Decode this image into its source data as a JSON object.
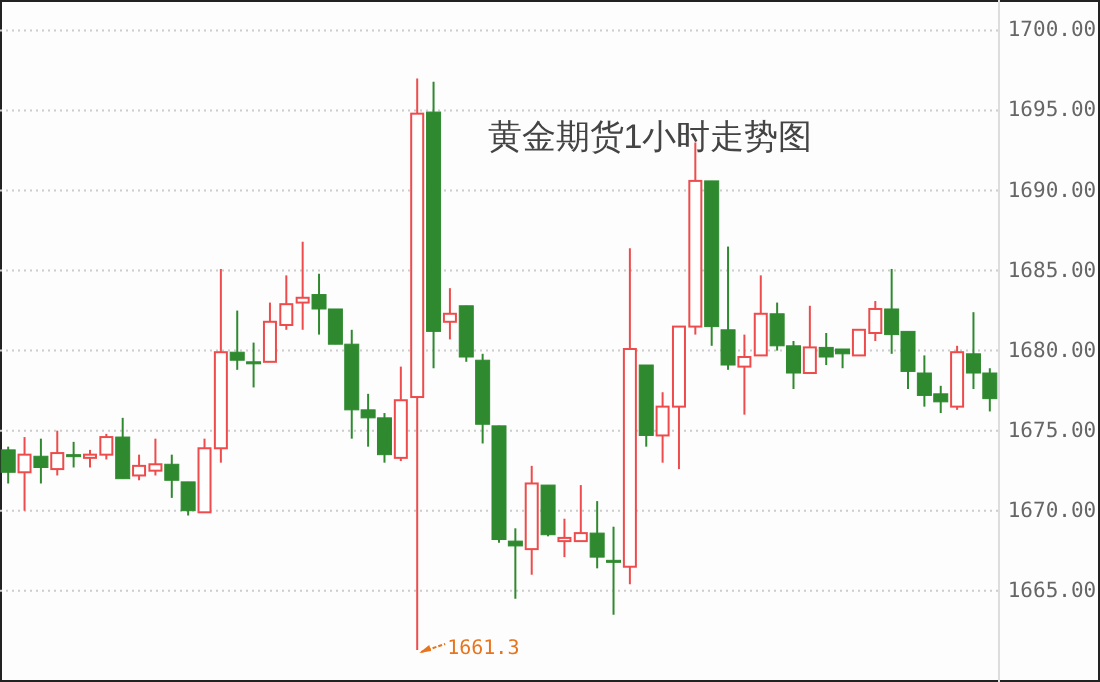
{
  "chart_data": {
    "type": "candlestick",
    "title": "黄金期货1小时走势图",
    "categories": [
      null,
      null,
      null,
      null,
      null,
      null,
      null,
      null,
      null,
      null,
      null,
      null,
      null,
      null,
      null,
      null,
      null,
      null,
      null,
      null,
      null,
      null,
      null,
      null,
      null,
      null,
      null,
      null,
      null,
      null,
      null,
      null,
      null,
      null,
      null,
      null,
      null,
      null,
      null,
      null,
      null,
      null,
      null,
      null,
      null,
      null,
      null,
      null,
      null,
      null,
      null,
      null,
      null,
      null,
      null,
      null,
      null,
      null,
      null,
      null,
      null
    ],
    "ohlc": [
      [
        1673.8,
        1674.0,
        1671.7,
        1672.4
      ],
      [
        1672.4,
        1674.6,
        1670.0,
        1673.5
      ],
      [
        1673.4,
        1674.5,
        1671.7,
        1672.7
      ],
      [
        1672.6,
        1675.0,
        1672.2,
        1673.6
      ],
      [
        1673.5,
        1674.3,
        1672.7,
        1673.4
      ],
      [
        1673.3,
        1673.8,
        1672.7,
        1673.5
      ],
      [
        1673.5,
        1674.8,
        1673.2,
        1674.6
      ],
      [
        1674.6,
        1675.8,
        1672.0,
        1672.0
      ],
      [
        1672.2,
        1673.5,
        1671.9,
        1672.8
      ],
      [
        1672.5,
        1674.5,
        1672.2,
        1672.9
      ],
      [
        1672.9,
        1673.5,
        1670.8,
        1671.9
      ],
      [
        1671.8,
        1671.8,
        1669.7,
        1670.0
      ],
      [
        1669.9,
        1674.5,
        1669.9,
        1673.9
      ],
      [
        1673.9,
        1685.1,
        1673.0,
        1679.9
      ],
      [
        1679.9,
        1682.5,
        1678.8,
        1679.4
      ],
      [
        1679.3,
        1680.5,
        1677.7,
        1679.2
      ],
      [
        1679.3,
        1683.0,
        1679.3,
        1681.8
      ],
      [
        1681.6,
        1684.7,
        1681.3,
        1682.9
      ],
      [
        1683.0,
        1686.8,
        1681.3,
        1683.3
      ],
      [
        1683.5,
        1684.8,
        1681.0,
        1682.6
      ],
      [
        1682.6,
        1682.6,
        1680.4,
        1680.4
      ],
      [
        1680.4,
        1681.3,
        1674.5,
        1676.3
      ],
      [
        1676.3,
        1677.3,
        1674.0,
        1675.8
      ],
      [
        1675.8,
        1676.1,
        1673.0,
        1673.5
      ],
      [
        1673.3,
        1679.0,
        1673.1,
        1676.9
      ],
      [
        1677.1,
        1697.0,
        1661.3,
        1694.8
      ],
      [
        1694.9,
        1696.8,
        1678.9,
        1681.2
      ],
      [
        1681.8,
        1683.9,
        1680.7,
        1682.3
      ],
      [
        1682.8,
        1682.8,
        1679.3,
        1679.6
      ],
      [
        1679.4,
        1679.8,
        1674.2,
        1675.4
      ],
      [
        1675.3,
        1675.3,
        1668.0,
        1668.2
      ],
      [
        1668.1,
        1668.9,
        1664.5,
        1667.8
      ],
      [
        1667.6,
        1672.8,
        1666.0,
        1671.7
      ],
      [
        1671.6,
        1671.6,
        1668.4,
        1668.5
      ],
      [
        1668.1,
        1669.5,
        1667.1,
        1668.3
      ],
      [
        1668.1,
        1671.6,
        1668.1,
        1668.6
      ],
      [
        1668.6,
        1670.6,
        1666.4,
        1667.1
      ],
      [
        1666.9,
        1669.0,
        1663.5,
        1666.8
      ],
      [
        1666.5,
        1686.4,
        1665.4,
        1680.1
      ],
      [
        1679.1,
        1679.1,
        1674.0,
        1674.7
      ],
      [
        1674.7,
        1677.4,
        1673.0,
        1676.5
      ],
      [
        1676.5,
        1681.5,
        1672.6,
        1681.5
      ],
      [
        1681.5,
        1693.0,
        1681.0,
        1690.6
      ],
      [
        1690.6,
        1690.6,
        1680.3,
        1681.5
      ],
      [
        1681.3,
        1686.5,
        1678.8,
        1679.1
      ],
      [
        1679.0,
        1681.0,
        1676.0,
        1679.6
      ],
      [
        1679.7,
        1684.7,
        1679.7,
        1682.3
      ],
      [
        1682.3,
        1683.0,
        1680.0,
        1680.3
      ],
      [
        1680.3,
        1680.6,
        1677.6,
        1678.6
      ],
      [
        1678.6,
        1682.8,
        1678.6,
        1680.2
      ],
      [
        1680.2,
        1681.1,
        1679.1,
        1679.6
      ],
      [
        1680.1,
        1680.1,
        1678.9,
        1679.8
      ],
      [
        1679.7,
        1681.3,
        1679.7,
        1681.3
      ],
      [
        1681.1,
        1683.1,
        1680.6,
        1682.6
      ],
      [
        1682.6,
        1685.1,
        1679.8,
        1681.0
      ],
      [
        1681.2,
        1681.2,
        1677.6,
        1678.7
      ],
      [
        1678.6,
        1679.7,
        1676.5,
        1677.2
      ],
      [
        1677.3,
        1677.8,
        1676.1,
        1676.8
      ],
      [
        1676.5,
        1680.3,
        1676.3,
        1679.9
      ],
      [
        1679.8,
        1682.4,
        1677.6,
        1678.6
      ],
      [
        1678.6,
        1678.9,
        1676.2,
        1677.0
      ]
    ],
    "ylim": [
      1659.3,
      1701.9
    ],
    "yticks": [
      {
        "value": 1665,
        "label": "1665.00"
      },
      {
        "value": 1670,
        "label": "1670.00"
      },
      {
        "value": 1675,
        "label": "1675.00"
      },
      {
        "value": 1680,
        "label": "1680.00"
      },
      {
        "value": 1685,
        "label": "1685.00"
      },
      {
        "value": 1690,
        "label": "1690.00"
      },
      {
        "value": 1695,
        "label": "1695.00"
      },
      {
        "value": 1700,
        "label": "1700.00"
      }
    ],
    "grid": "y",
    "tick_labels": "y",
    "annotations": [
      "1661.3"
    ]
  }
}
